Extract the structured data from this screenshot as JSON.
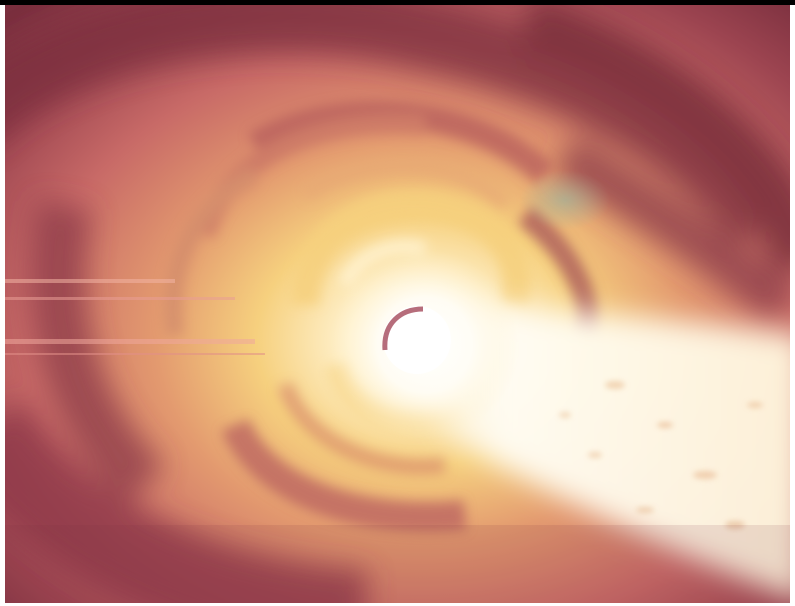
{
  "image": {
    "subject": "swirling-vortex",
    "colors": {
      "deep": "#7a2f3e",
      "dark_rose": "#9c4450",
      "rose": "#c86a67",
      "amber": "#e39a6f",
      "gold": "#f6d07e",
      "cream": "#fff2cf",
      "white_hot": "#fffdf6",
      "teal_haze": "#8fb6a5"
    }
  }
}
